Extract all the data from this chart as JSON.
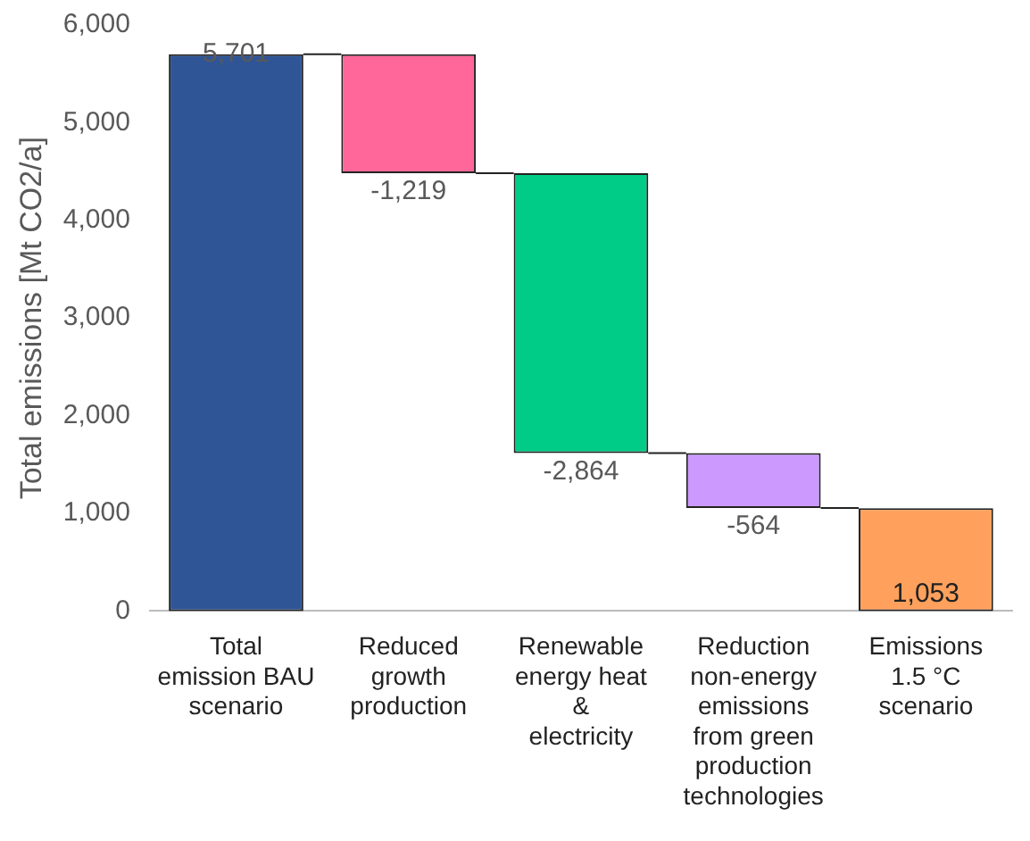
{
  "chart_data": {
    "type": "bar",
    "ylabel": "Total emissions [Mt CO2/a]",
    "categories": [
      "Total emission BAU scenario",
      "Reduced growth production",
      "Renewable energy heat & electricity",
      "Reduction non-energy emissions from green production technologies",
      "Emissions 1.5 °C scenario"
    ],
    "values": [
      5701,
      -1219,
      -2864,
      -564,
      1053
    ],
    "base": [
      0,
      5701,
      4482,
      1618,
      0
    ],
    "colors": [
      "#2f5597",
      "#ff6699",
      "#00cc88",
      "#cc99ff",
      "#ffa15c"
    ],
    "value_labels": [
      "5,701",
      "-1,219",
      "-2,864",
      "-564",
      "1,053"
    ],
    "ylim": [
      0,
      6000
    ],
    "yticks": [
      {
        "value": 0,
        "label": "0"
      },
      {
        "value": 1000,
        "label": "1,000"
      },
      {
        "value": 2000,
        "label": "2,000"
      },
      {
        "value": 3000,
        "label": "3,000"
      },
      {
        "value": 4000,
        "label": "4,000"
      },
      {
        "value": 5000,
        "label": "5,000"
      },
      {
        "value": 6000,
        "label": "6,000"
      }
    ],
    "grid": false,
    "legend": false
  }
}
